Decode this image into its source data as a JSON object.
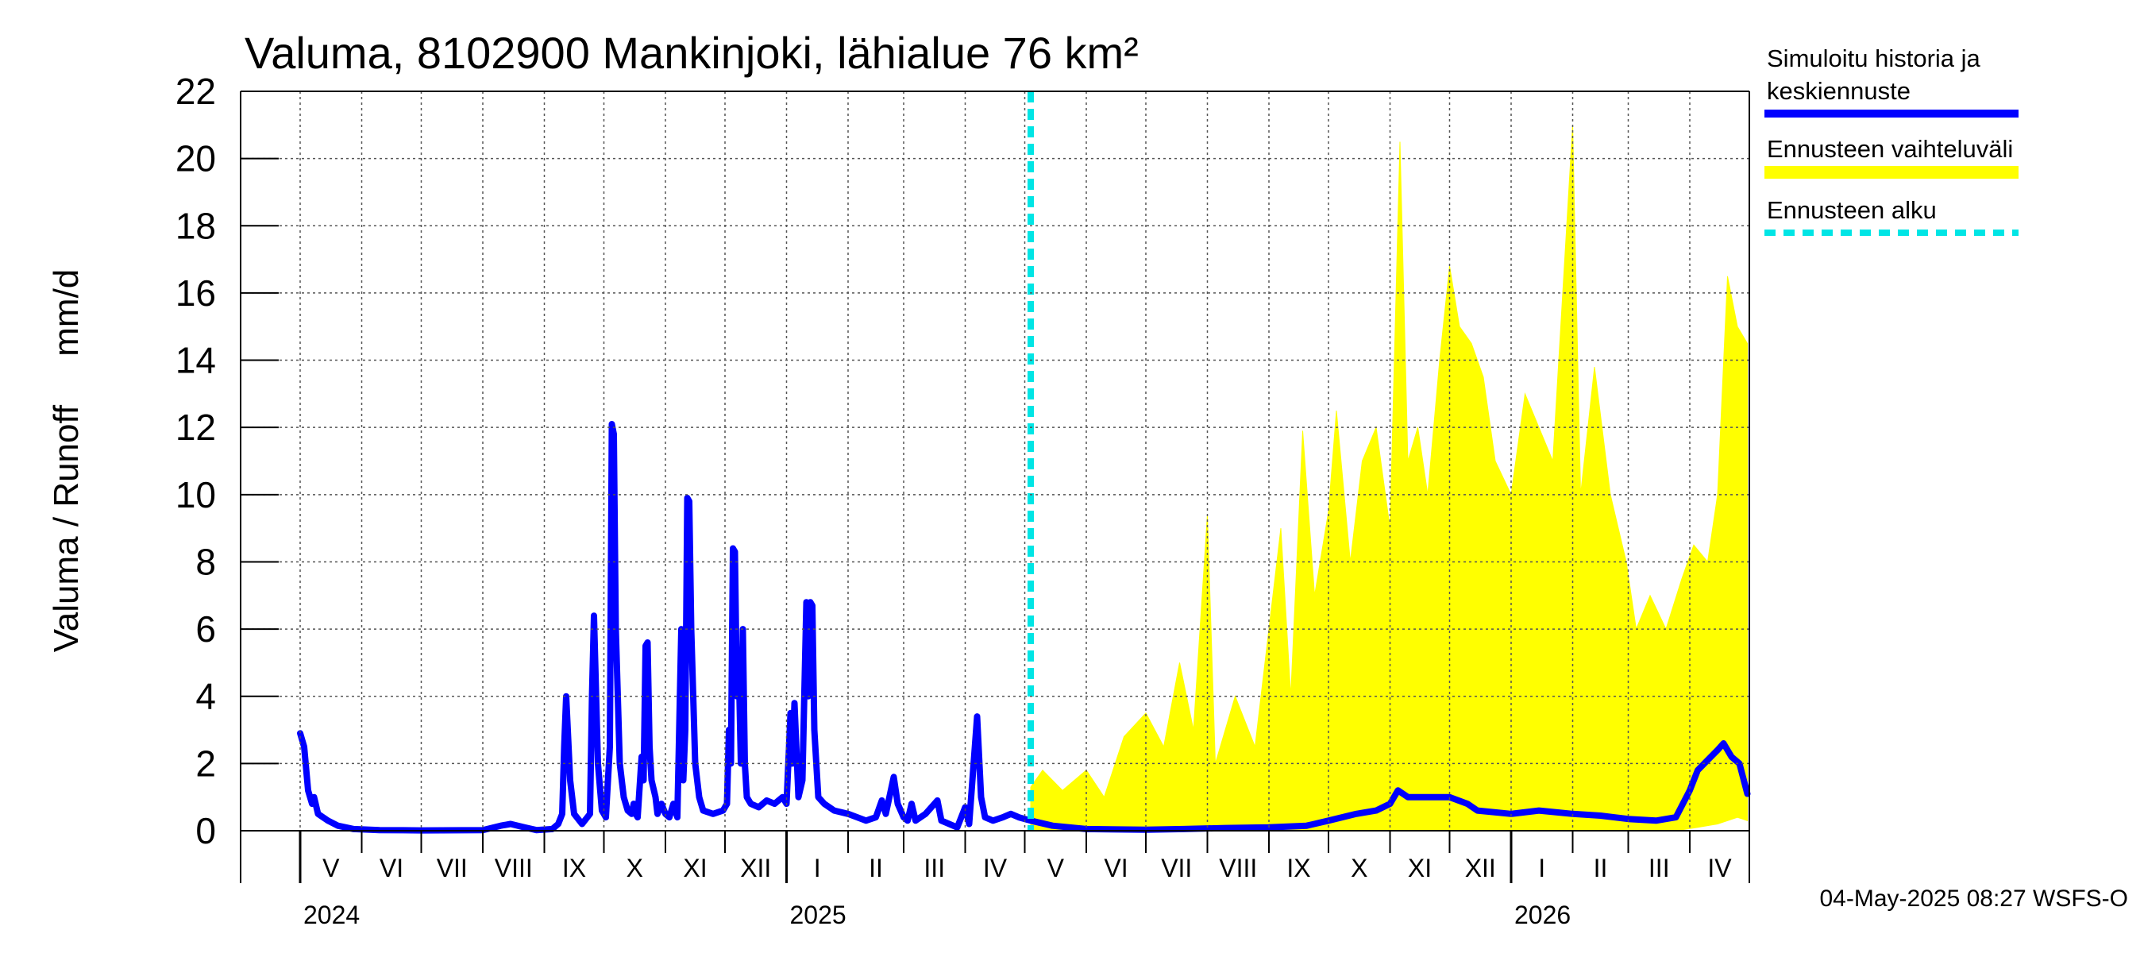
{
  "chart_data": {
    "type": "area",
    "title": "Valuma, 8102900 Mankinjoki, lähialue 76 km²",
    "ylabel": "Valuma / Runoff     mm/d",
    "ylim": [
      0,
      22
    ],
    "yticks": [
      0,
      2,
      4,
      6,
      8,
      10,
      12,
      14,
      16,
      18,
      20,
      22
    ],
    "grid": true,
    "legend": {
      "placement": "right",
      "entries": [
        {
          "label": "Simuloitu historia ja keskiennuste",
          "line1": "Simuloitu historia ja",
          "line2": "keskiennuste",
          "color": "#0000ff",
          "style": "solid"
        },
        {
          "label": "Ennusteen vaihteluväli",
          "color": "#ffff00",
          "style": "solid"
        },
        {
          "label": "Ennusteen alku",
          "color": "#00e5e5",
          "style": "dashed"
        }
      ]
    },
    "x_start": "2024-04-01",
    "x_end": "2026-05-01",
    "forecast_start": "2025-05-04",
    "months": [
      {
        "label": "V",
        "date": "2024-05-01"
      },
      {
        "label": "VI",
        "date": "2024-06-01"
      },
      {
        "label": "VII",
        "date": "2024-07-01"
      },
      {
        "label": "VIII",
        "date": "2024-08-01"
      },
      {
        "label": "IX",
        "date": "2024-09-01"
      },
      {
        "label": "X",
        "date": "2024-10-01"
      },
      {
        "label": "XI",
        "date": "2024-11-01"
      },
      {
        "label": "XII",
        "date": "2024-12-01"
      },
      {
        "label": "I",
        "date": "2025-01-01"
      },
      {
        "label": "II",
        "date": "2025-02-01"
      },
      {
        "label": "III",
        "date": "2025-03-01"
      },
      {
        "label": "IV",
        "date": "2025-04-01"
      },
      {
        "label": "V",
        "date": "2025-05-01"
      },
      {
        "label": "VI",
        "date": "2025-06-01"
      },
      {
        "label": "VII",
        "date": "2025-07-01"
      },
      {
        "label": "VIII",
        "date": "2025-08-01"
      },
      {
        "label": "IX",
        "date": "2025-09-01"
      },
      {
        "label": "X",
        "date": "2025-10-01"
      },
      {
        "label": "XI",
        "date": "2025-11-01"
      },
      {
        "label": "XII",
        "date": "2025-12-01"
      },
      {
        "label": "I",
        "date": "2026-01-01"
      },
      {
        "label": "II",
        "date": "2026-02-01"
      },
      {
        "label": "III",
        "date": "2026-03-01"
      },
      {
        "label": "IV",
        "date": "2026-04-01"
      }
    ],
    "years": [
      {
        "label": "2024",
        "date": "2024-05-01"
      },
      {
        "label": "2025",
        "date": "2025-01-01"
      },
      {
        "label": "2026",
        "date": "2026-01-01"
      }
    ],
    "series_mean": {
      "name": "Simuloitu historia ja keskiennuste",
      "points": [
        [
          "2024-05-01",
          2.9
        ],
        [
          "2024-05-03",
          2.5
        ],
        [
          "2024-05-05",
          1.2
        ],
        [
          "2024-05-07",
          0.8
        ],
        [
          "2024-05-08",
          1.0
        ],
        [
          "2024-05-10",
          0.5
        ],
        [
          "2024-05-15",
          0.3
        ],
        [
          "2024-05-20",
          0.15
        ],
        [
          "2024-05-28",
          0.05
        ],
        [
          "2024-06-10",
          0.02
        ],
        [
          "2024-07-01",
          0.01
        ],
        [
          "2024-08-01",
          0.02
        ],
        [
          "2024-08-10",
          0.15
        ],
        [
          "2024-08-15",
          0.2
        ],
        [
          "2024-08-22",
          0.1
        ],
        [
          "2024-08-28",
          0.02
        ],
        [
          "2024-09-05",
          0.05
        ],
        [
          "2024-09-08",
          0.2
        ],
        [
          "2024-09-10",
          0.5
        ],
        [
          "2024-09-11",
          2.5
        ],
        [
          "2024-09-12",
          4.0
        ],
        [
          "2024-09-14",
          1.5
        ],
        [
          "2024-09-16",
          0.5
        ],
        [
          "2024-09-20",
          0.2
        ],
        [
          "2024-09-24",
          0.5
        ],
        [
          "2024-09-25",
          4.0
        ],
        [
          "2024-09-26",
          6.4
        ],
        [
          "2024-09-28",
          2.0
        ],
        [
          "2024-09-30",
          0.6
        ],
        [
          "2024-10-02",
          0.4
        ],
        [
          "2024-10-04",
          2.5
        ],
        [
          "2024-10-05",
          12.1
        ],
        [
          "2024-10-06",
          11.8
        ],
        [
          "2024-10-07",
          6.0
        ],
        [
          "2024-10-09",
          2.0
        ],
        [
          "2024-10-11",
          1.0
        ],
        [
          "2024-10-13",
          0.6
        ],
        [
          "2024-10-15",
          0.5
        ],
        [
          "2024-10-16",
          0.8
        ],
        [
          "2024-10-17",
          0.5
        ],
        [
          "2024-10-18",
          0.4
        ],
        [
          "2024-10-20",
          2.2
        ],
        [
          "2024-10-21",
          1.5
        ],
        [
          "2024-10-22",
          5.5
        ],
        [
          "2024-10-23",
          5.6
        ],
        [
          "2024-10-24",
          2.5
        ],
        [
          "2024-10-25",
          1.5
        ],
        [
          "2024-10-27",
          1.0
        ],
        [
          "2024-10-28",
          0.5
        ],
        [
          "2024-10-30",
          0.8
        ],
        [
          "2024-11-01",
          0.5
        ],
        [
          "2024-11-03",
          0.4
        ],
        [
          "2024-11-05",
          0.8
        ],
        [
          "2024-11-07",
          0.4
        ],
        [
          "2024-11-09",
          6.0
        ],
        [
          "2024-11-10",
          1.5
        ],
        [
          "2024-11-11",
          3.0
        ],
        [
          "2024-11-12",
          9.9
        ],
        [
          "2024-11-13",
          9.8
        ],
        [
          "2024-11-14",
          6.0
        ],
        [
          "2024-11-16",
          2.0
        ],
        [
          "2024-11-18",
          1.0
        ],
        [
          "2024-11-20",
          0.6
        ],
        [
          "2024-11-25",
          0.5
        ],
        [
          "2024-11-30",
          0.6
        ],
        [
          "2024-12-02",
          0.8
        ],
        [
          "2024-12-03",
          3.0
        ],
        [
          "2024-12-04",
          2.0
        ],
        [
          "2024-12-05",
          8.4
        ],
        [
          "2024-12-06",
          8.3
        ],
        [
          "2024-12-07",
          4.0
        ],
        [
          "2024-12-08",
          4.8
        ],
        [
          "2024-12-09",
          2.0
        ],
        [
          "2024-12-10",
          6.0
        ],
        [
          "2024-12-11",
          2.0
        ],
        [
          "2024-12-12",
          1.0
        ],
        [
          "2024-12-14",
          0.8
        ],
        [
          "2024-12-18",
          0.7
        ],
        [
          "2024-12-22",
          0.9
        ],
        [
          "2024-12-26",
          0.8
        ],
        [
          "2024-12-30",
          1.0
        ],
        [
          "2025-01-01",
          0.8
        ],
        [
          "2025-01-03",
          3.5
        ],
        [
          "2025-01-04",
          2.0
        ],
        [
          "2025-01-05",
          3.8
        ],
        [
          "2025-01-07",
          1.0
        ],
        [
          "2025-01-09",
          1.5
        ],
        [
          "2025-01-11",
          6.8
        ],
        [
          "2025-01-12",
          4.0
        ],
        [
          "2025-01-13",
          6.8
        ],
        [
          "2025-01-14",
          6.7
        ],
        [
          "2025-01-15",
          3.0
        ],
        [
          "2025-01-17",
          1.0
        ],
        [
          "2025-01-20",
          0.8
        ],
        [
          "2025-01-25",
          0.6
        ],
        [
          "2025-02-01",
          0.5
        ],
        [
          "2025-02-10",
          0.3
        ],
        [
          "2025-02-15",
          0.4
        ],
        [
          "2025-02-18",
          0.9
        ],
        [
          "2025-02-20",
          0.5
        ],
        [
          "2025-02-24",
          1.6
        ],
        [
          "2025-02-26",
          0.8
        ],
        [
          "2025-03-01",
          0.4
        ],
        [
          "2025-03-03",
          0.3
        ],
        [
          "2025-03-05",
          0.8
        ],
        [
          "2025-03-07",
          0.3
        ],
        [
          "2025-03-12",
          0.5
        ],
        [
          "2025-03-18",
          0.9
        ],
        [
          "2025-03-20",
          0.3
        ],
        [
          "2025-03-28",
          0.1
        ],
        [
          "2025-04-01",
          0.7
        ],
        [
          "2025-04-03",
          0.2
        ],
        [
          "2025-04-07",
          3.4
        ],
        [
          "2025-04-09",
          1.0
        ],
        [
          "2025-04-11",
          0.4
        ],
        [
          "2025-04-15",
          0.3
        ],
        [
          "2025-04-20",
          0.4
        ],
        [
          "2025-04-24",
          0.5
        ],
        [
          "2025-04-28",
          0.4
        ],
        [
          "2025-05-04",
          0.3
        ],
        [
          "2025-05-15",
          0.15
        ],
        [
          "2025-06-01",
          0.05
        ],
        [
          "2025-07-01",
          0.03
        ],
        [
          "2025-07-20",
          0.05
        ],
        [
          "2025-08-10",
          0.08
        ],
        [
          "2025-09-01",
          0.1
        ],
        [
          "2025-09-20",
          0.15
        ],
        [
          "2025-10-01",
          0.3
        ],
        [
          "2025-10-15",
          0.5
        ],
        [
          "2025-10-25",
          0.6
        ],
        [
          "2025-11-01",
          0.8
        ],
        [
          "2025-11-05",
          1.2
        ],
        [
          "2025-11-10",
          1.0
        ],
        [
          "2025-11-20",
          1.0
        ],
        [
          "2025-12-01",
          1.0
        ],
        [
          "2025-12-10",
          0.8
        ],
        [
          "2025-12-15",
          0.6
        ],
        [
          "2026-01-01",
          0.5
        ],
        [
          "2026-01-15",
          0.6
        ],
        [
          "2026-02-01",
          0.5
        ],
        [
          "2026-02-15",
          0.45
        ],
        [
          "2026-03-01",
          0.35
        ],
        [
          "2026-03-15",
          0.3
        ],
        [
          "2026-03-25",
          0.4
        ],
        [
          "2026-04-01",
          1.2
        ],
        [
          "2026-04-05",
          1.8
        ],
        [
          "2026-04-10",
          2.1
        ],
        [
          "2026-04-15",
          2.4
        ],
        [
          "2026-04-18",
          2.6
        ],
        [
          "2026-04-22",
          2.2
        ],
        [
          "2026-04-26",
          2.0
        ],
        [
          "2026-04-30",
          1.1
        ]
      ]
    },
    "series_range": {
      "name": "Ennusteen vaihteluväli",
      "upper": [
        [
          "2025-05-04",
          1.3
        ],
        [
          "2025-05-10",
          1.8
        ],
        [
          "2025-05-20",
          1.2
        ],
        [
          "2025-06-01",
          1.8
        ],
        [
          "2025-06-10",
          1.0
        ],
        [
          "2025-06-20",
          2.8
        ],
        [
          "2025-07-01",
          3.5
        ],
        [
          "2025-07-10",
          2.5
        ],
        [
          "2025-07-18",
          5.0
        ],
        [
          "2025-07-25",
          3.0
        ],
        [
          "2025-08-01",
          9.4
        ],
        [
          "2025-08-05",
          2.0
        ],
        [
          "2025-08-15",
          4.0
        ],
        [
          "2025-08-25",
          2.5
        ],
        [
          "2025-09-01",
          6.0
        ],
        [
          "2025-09-07",
          9.0
        ],
        [
          "2025-09-12",
          4.0
        ],
        [
          "2025-09-18",
          11.9
        ],
        [
          "2025-09-24",
          7.0
        ],
        [
          "2025-10-01",
          9.5
        ],
        [
          "2025-10-05",
          12.5
        ],
        [
          "2025-10-12",
          8.0
        ],
        [
          "2025-10-18",
          11.0
        ],
        [
          "2025-10-25",
          12.0
        ],
        [
          "2025-11-01",
          9.0
        ],
        [
          "2025-11-06",
          20.5
        ],
        [
          "2025-11-10",
          11.0
        ],
        [
          "2025-11-15",
          12.0
        ],
        [
          "2025-11-20",
          10.0
        ],
        [
          "2025-11-26",
          14.0
        ],
        [
          "2025-12-01",
          16.8
        ],
        [
          "2025-12-06",
          15.0
        ],
        [
          "2025-12-12",
          14.5
        ],
        [
          "2025-12-18",
          13.5
        ],
        [
          "2025-12-24",
          11.0
        ],
        [
          "2026-01-01",
          10.0
        ],
        [
          "2026-01-08",
          13.0
        ],
        [
          "2026-01-15",
          12.0
        ],
        [
          "2026-01-22",
          11.0
        ],
        [
          "2026-02-01",
          21.0
        ],
        [
          "2026-02-05",
          10.0
        ],
        [
          "2026-02-12",
          13.8
        ],
        [
          "2026-02-20",
          10.0
        ],
        [
          "2026-02-28",
          8.0
        ],
        [
          "2026-03-05",
          6.0
        ],
        [
          "2026-03-12",
          7.0
        ],
        [
          "2026-03-20",
          6.0
        ],
        [
          "2026-03-28",
          7.5
        ],
        [
          "2026-04-03",
          8.5
        ],
        [
          "2026-04-10",
          8.0
        ],
        [
          "2026-04-15",
          10.0
        ],
        [
          "2026-04-20",
          16.5
        ],
        [
          "2026-04-25",
          15.0
        ],
        [
          "2026-04-30",
          14.5
        ]
      ],
      "lower": [
        [
          "2025-05-04",
          0.0
        ],
        [
          "2026-03-25",
          0.0
        ],
        [
          "2026-04-05",
          0.1
        ],
        [
          "2026-04-15",
          0.2
        ],
        [
          "2026-04-25",
          0.4
        ],
        [
          "2026-04-30",
          0.3
        ]
      ]
    },
    "footer": "04-May-2025 08:27 WSFS-O"
  }
}
